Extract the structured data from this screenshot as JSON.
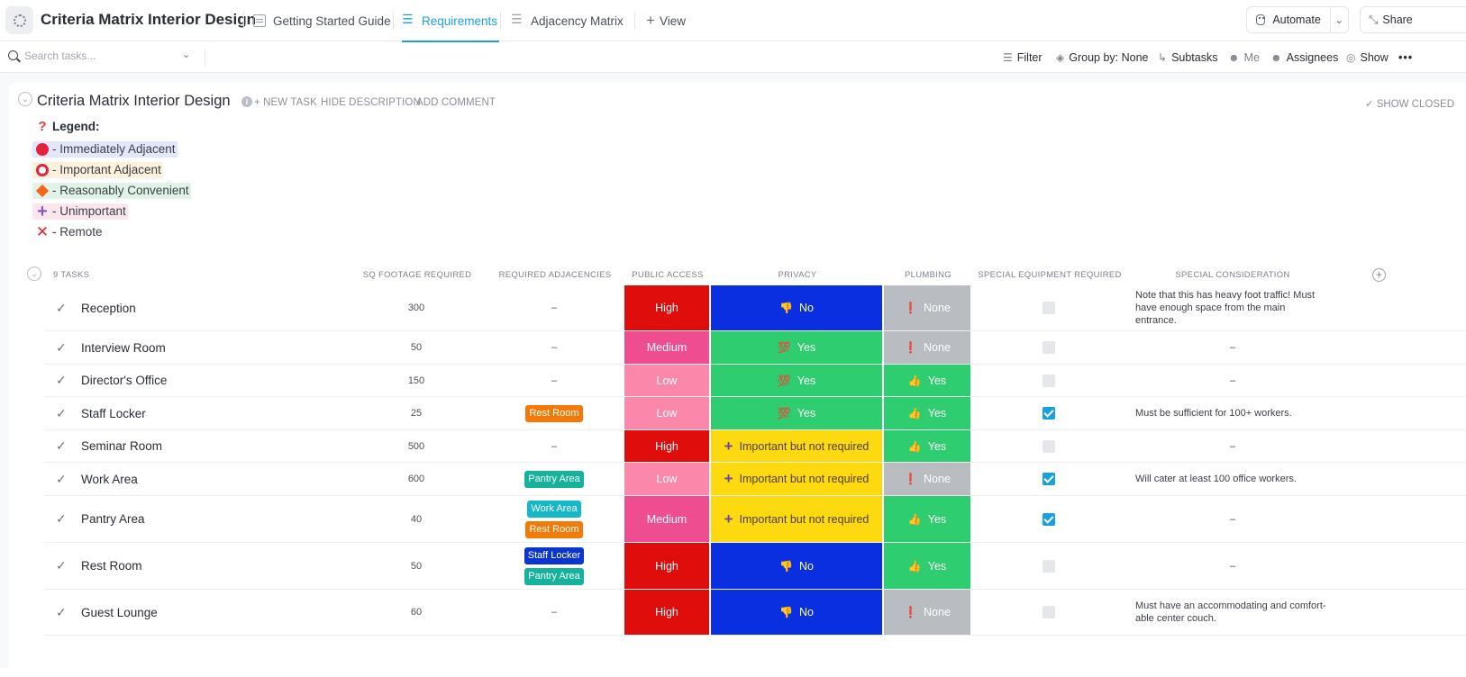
{
  "header": {
    "title": "Criteria Matrix Interior Design",
    "tabs": [
      {
        "label": "Getting Started Guide"
      },
      {
        "label": "Requirements"
      },
      {
        "label": "Adjacency Matrix"
      }
    ],
    "add_view_label": "View",
    "automate_label": "Automate",
    "share_label": "Share"
  },
  "toolbar": {
    "search_placeholder": "Search tasks...",
    "filter_label": "Filter",
    "group_by_label": "Group by: None",
    "subtasks_label": "Subtasks",
    "me_label": "Me",
    "assignees_label": "Assignees",
    "show_label": "Show"
  },
  "list": {
    "title": "Criteria Matrix Interior Design",
    "new_task_label": "+ NEW TASK",
    "hide_description_label": "HIDE DESCRIPTION",
    "add_comment_label": "ADD COMMENT",
    "show_closed_label": "SHOW CLOSED"
  },
  "legend": {
    "heading": "Legend:",
    "items": [
      {
        "label": "- Immediately Adjacent",
        "bg": "#e4e7fb"
      },
      {
        "label": "- Important Adjacent",
        "bg": "#fdf1dc"
      },
      {
        "label": "- Reasonably Convenient",
        "bg": "#e0f3e6"
      },
      {
        "label": "- Unimportant",
        "bg": "#fbe6ee"
      },
      {
        "label": "- Remote",
        "bg": "transparent"
      }
    ]
  },
  "table": {
    "task_count": "9 TASKS",
    "columns": {
      "sqft": "SQ FOOTAGE REQUIRED",
      "adj": "REQUIRED ADJACENCIES",
      "public": "PUBLIC ACCESS",
      "privacy": "PRIVACY",
      "plumbing": "PLUMBING",
      "special_eq": "SPECIAL EQUIPMENT REQUIRED",
      "special_cons": "SPECIAL CONSIDERATION"
    },
    "colors": {
      "High": "#e00d0d",
      "Medium": "#ee4d8f",
      "Low": "#fb87aa",
      "No": "#0a2fe0",
      "Yes": "#2ecd6f",
      "Important but not required": "#fdd90f",
      "None": "#b9bcc1",
      "Rest Room": "#f27a08",
      "Pantry Area": "#16b39c",
      "Work Area": "#15b7c8",
      "Staff Locker": "#0a35cf"
    },
    "dash": "–",
    "rows": [
      {
        "name": "Reception",
        "sqft": "300",
        "adj": [],
        "public": "High",
        "privacy": {
          "icon": "👎",
          "label": "No"
        },
        "plumbing": {
          "icon": "❗",
          "label": "None"
        },
        "special_eq": false,
        "consideration": "Note that this has heavy foot traffic! Must have enough space from the main entrance."
      },
      {
        "name": "Interview Room",
        "sqft": "50",
        "adj": [],
        "public": "Medium",
        "privacy": {
          "icon": "💯",
          "label": "Yes"
        },
        "plumbing": {
          "icon": "❗",
          "label": "None"
        },
        "special_eq": false,
        "consideration": ""
      },
      {
        "name": "Director's Office",
        "sqft": "150",
        "adj": [],
        "public": "Low",
        "privacy": {
          "icon": "💯",
          "label": "Yes"
        },
        "plumbing": {
          "icon": "👍",
          "label": "Yes"
        },
        "special_eq": false,
        "consideration": ""
      },
      {
        "name": "Staff Locker",
        "sqft": "25",
        "adj": [
          "Rest Room"
        ],
        "public": "Low",
        "privacy": {
          "icon": "💯",
          "label": "Yes"
        },
        "plumbing": {
          "icon": "👍",
          "label": "Yes"
        },
        "special_eq": true,
        "consideration": "Must be sufficient for 100+ workers."
      },
      {
        "name": "Seminar Room",
        "sqft": "500",
        "adj": [],
        "public": "High",
        "privacy": {
          "icon": "+",
          "label": "Important but not required"
        },
        "plumbing": {
          "icon": "👍",
          "label": "Yes"
        },
        "special_eq": false,
        "consideration": ""
      },
      {
        "name": "Work Area",
        "sqft": "600",
        "adj": [
          "Pantry Area"
        ],
        "public": "Low",
        "privacy": {
          "icon": "+",
          "label": "Important but not required"
        },
        "plumbing": {
          "icon": "❗",
          "label": "None"
        },
        "special_eq": true,
        "consideration": "Will cater at least 100 office workers."
      },
      {
        "name": "Pantry Area",
        "sqft": "40",
        "adj": [
          "Work Area",
          "Rest Room"
        ],
        "public": "Medium",
        "privacy": {
          "icon": "+",
          "label": "Important but not required"
        },
        "plumbing": {
          "icon": "👍",
          "label": "Yes"
        },
        "special_eq": true,
        "consideration": ""
      },
      {
        "name": "Rest Room",
        "sqft": "50",
        "adj": [
          "Staff Locker",
          "Pantry Area"
        ],
        "public": "High",
        "privacy": {
          "icon": "👎",
          "label": "No"
        },
        "plumbing": {
          "icon": "👍",
          "label": "Yes"
        },
        "special_eq": false,
        "consideration": ""
      },
      {
        "name": "Guest Lounge",
        "sqft": "60",
        "adj": [],
        "public": "High",
        "privacy": {
          "icon": "👎",
          "label": "No"
        },
        "plumbing": {
          "icon": "❗",
          "label": "None"
        },
        "special_eq": false,
        "consideration": "Must have an accommodating and comfort-able center couch."
      }
    ]
  }
}
